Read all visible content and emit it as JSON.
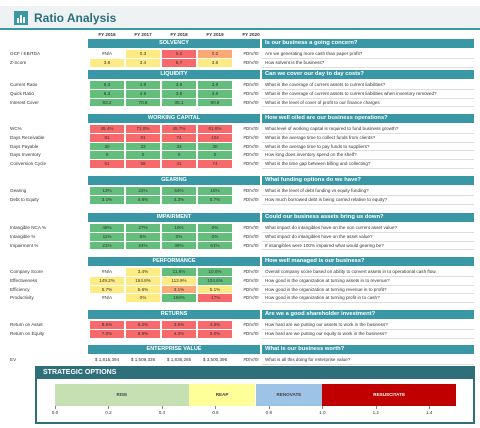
{
  "header": {
    "title": "Ratio Analysis"
  },
  "columns": [
    "FY 2016",
    "FY 2017",
    "FY 2018",
    "FY 2019",
    "FY 2020"
  ],
  "sections": [
    {
      "title": "SOLVENCY",
      "question": "Is our business a going concern?",
      "rows": [
        {
          "label": "GCF / EBITDA",
          "cells": [
            "#N/A",
            "0.3",
            "0.2",
            "0.2",
            "#DIV/0!"
          ],
          "fills": [
            "#ffffff",
            "#ffeb84",
            "#f8696b",
            "#fbaa77",
            "#ffffff"
          ],
          "question": "Are we generating more cash than paper profit?"
        },
        {
          "label": "Z-Score",
          "cells": [
            "3.9",
            "3.4",
            "6.7",
            "3.8",
            "#DIV/0!"
          ],
          "fills": [
            "#ffeb84",
            "#ffeb84",
            "#f8696b",
            "#ffeb84",
            "#ffffff"
          ],
          "question": "How solvent is the business?"
        }
      ]
    },
    {
      "title": "LIQUIDITY",
      "question": "Can we cover our day to day costs?",
      "rows": [
        {
          "label": "Current Ratio",
          "cells": [
            "6.3",
            "4.9",
            "3.9",
            "3.9",
            "#DIV/0!"
          ],
          "fills": [
            "#63be7b",
            "#63be7b",
            "#63be7b",
            "#63be7b",
            "#ffffff"
          ],
          "question": "What is the coverage of current assets to current liabilities?"
        },
        {
          "label": "Quick Ratio",
          "cells": [
            "6.3",
            "4.9",
            "3.8",
            "3.8",
            "#DIV/0!"
          ],
          "fills": [
            "#63be7b",
            "#63be7b",
            "#63be7b",
            "#63be7b",
            "#ffffff"
          ],
          "question": "What is the coverage of current assets to current liabilities when inventory removed?"
        },
        {
          "label": "Interest Cover",
          "cells": [
            "93.2",
            "70.6",
            "35.1",
            "90.9",
            "#DIV/0!"
          ],
          "fills": [
            "#63be7b",
            "#63be7b",
            "#63be7b",
            "#63be7b",
            "#ffffff"
          ],
          "question": "What is the level of cover of profit to our finance charges"
        }
      ]
    },
    {
      "title": "WORKING CAPITAL",
      "question": "How well oiled are our business operations?",
      "rows": [
        {
          "label": "WC%",
          "cells": [
            "45.4%",
            "71.0%",
            "45.7%",
            "61.6%",
            "#DIV/0!"
          ],
          "fills": [
            "#f8696b",
            "#f8696b",
            "#f8696b",
            "#f8696b",
            "#ffffff"
          ],
          "question": "What level of working capital is required to fund business growth?"
        },
        {
          "label": "Days Receivable",
          "cells": [
            "81",
            "91",
            "74",
            "104",
            "#DIV/0!"
          ],
          "fills": [
            "#f8696b",
            "#f8696b",
            "#f8696b",
            "#f8696b",
            "#ffffff"
          ],
          "question": "What is the average time to collect funds from clients?"
        },
        {
          "label": "Days Payable",
          "cells": [
            "30",
            "33",
            "33",
            "30",
            "#DIV/0!"
          ],
          "fills": [
            "#63be7b",
            "#63be7b",
            "#63be7b",
            "#63be7b",
            "#ffffff"
          ],
          "question": "What is the average time to pay funds to suppliers?"
        },
        {
          "label": "Days Inventory",
          "cells": [
            "0",
            "0",
            "0",
            "0",
            "#DIV/0!"
          ],
          "fills": [
            "#63be7b",
            "#63be7b",
            "#63be7b",
            "#63be7b",
            "#ffffff"
          ],
          "question": "How long does inventory spend on the shelf?"
        },
        {
          "label": "Conversion Cycle",
          "cells": [
            "51",
            "58",
            "41",
            "74",
            "#DIV/0!"
          ],
          "fills": [
            "#f8696b",
            "#f8696b",
            "#f8696b",
            "#f8696b",
            "#ffffff"
          ],
          "question": "What is the time gap between billing and collecting?"
        }
      ]
    },
    {
      "title": "GEARING",
      "question": "What funding options do we have?",
      "rows": [
        {
          "label": "Gearing",
          "cells": [
            "13%",
            "22%",
            "64%",
            "15%",
            "#DIV/0!"
          ],
          "fills": [
            "#63be7b",
            "#63be7b",
            "#63be7b",
            "#63be7b",
            "#ffffff"
          ],
          "question": "What is the level of debt funding vs equity funding?"
        },
        {
          "label": "Debt to Equity",
          "cells": [
            "3.1%",
            "4.8%",
            "4.3%",
            "0.7%",
            "#DIV/0!"
          ],
          "fills": [
            "#63be7b",
            "#63be7b",
            "#63be7b",
            "#63be7b",
            "#ffffff"
          ],
          "question": "How much borrowed debt is being carried relative to equity?"
        }
      ]
    },
    {
      "title": "IMPAIRMENT",
      "question": "Could our business assets bring us down?",
      "rows": [
        {
          "label": "Intangible NCA %",
          "cells": [
            "48%",
            "27%",
            "16%",
            "0%",
            "#DIV/0!"
          ],
          "fills": [
            "#63be7b",
            "#63be7b",
            "#63be7b",
            "#63be7b",
            "#ffffff"
          ],
          "question": "What impact do intangibles have on the non current asset value?"
        },
        {
          "label": "Intangible %",
          "cells": [
            "11%",
            "8%",
            "0%",
            "0%",
            "#DIV/0!"
          ],
          "fills": [
            "#63be7b",
            "#63be7b",
            "#63be7b",
            "#63be7b",
            "#ffffff"
          ],
          "question": "What impact do intangibles have on the asset value?"
        },
        {
          "label": "Impairment %",
          "cells": [
            "21%",
            "24%",
            "36%",
            "61%",
            "#DIV/0!"
          ],
          "fills": [
            "#63be7b",
            "#63be7b",
            "#63be7b",
            "#63be7b",
            "#ffffff"
          ],
          "question": "If intangibles were 100% impaired what would gearing be?"
        }
      ]
    },
    {
      "title": "PERFORMANCE",
      "question": "How well managed is our business?",
      "rows": [
        {
          "label": "Company Score",
          "cells": [
            "#N/A",
            "3.4%",
            "11.8%",
            "10.6%",
            "#DIV/0!"
          ],
          "fills": [
            "#ffffff",
            "#ffeb84",
            "#63be7b",
            "#63be7b",
            "#ffffff"
          ],
          "question": "Overall company score based on ability to convert assets in to operational cash flow."
        },
        {
          "label": "Effectiveness",
          "cells": [
            "149.2%",
            "164.8%",
            "113.9%",
            "104.6%",
            "#DIV/0!"
          ],
          "fills": [
            "#ffeb84",
            "#ffeb84",
            "#ffeb84",
            "#63be7b",
            "#ffffff"
          ],
          "question": "How good is the organization at turning assets in to revenue?"
        },
        {
          "label": "Efficiency",
          "cells": [
            "5.7%",
            "5.6%",
            "3.1%",
            "5.1%",
            "#DIV/0!"
          ],
          "fills": [
            "#ffeb84",
            "#ffeb84",
            "#fbaa77",
            "#ffeb84",
            "#ffffff"
          ],
          "question": "How good is the organization at turning revenue in to profit?"
        },
        {
          "label": "Productivity",
          "cells": [
            "#N/A",
            "0%",
            "156%",
            "-17%",
            "#DIV/0!"
          ],
          "fills": [
            "#ffffff",
            "#ffeb84",
            "#63be7b",
            "#f8696b",
            "#ffffff"
          ],
          "question": "How good is the organization at turning profit in to cash?"
        }
      ]
    },
    {
      "title": "RETURNS",
      "question": "Are we a good shareholder investment?",
      "rows": [
        {
          "label": "Return on Asset",
          "cells": [
            "8.5%",
            "9.2%",
            "3.5%",
            "4.9%",
            "#DIV/0!"
          ],
          "fills": [
            "#f8696b",
            "#f8696b",
            "#f8696b",
            "#f8696b",
            "#ffffff"
          ],
          "question": "How hard are we putting our assets to work in the business?"
        },
        {
          "label": "Return on Equity",
          "cells": [
            "7.0%",
            "8.9%",
            "4.3%",
            "5.0%",
            "#DIV/0!"
          ],
          "fills": [
            "#f8696b",
            "#f8696b",
            "#f8696b",
            "#f8696b",
            "#ffffff"
          ],
          "question": "How hard are we putting our equity to work in the business?"
        }
      ]
    },
    {
      "title": "ENTERPRISE VALUE",
      "question": "What is our business worth?",
      "rows": [
        {
          "label": "EV",
          "cells": [
            "$ 1,815,394",
            "$ 1,509,336",
            "$ 1,836,285",
            "$ 3,500,396",
            "#DIV/0!"
          ],
          "fills": [
            "#ffffff",
            "#ffffff",
            "#ffffff",
            "#ffffff",
            "#ffffff"
          ],
          "question": "What is all this doing for enterprise value?"
        }
      ]
    }
  ],
  "strategic_options": {
    "title": "STRATEGIC OPTIONS",
    "xlim": [
      0,
      1.5
    ],
    "xticks": [
      {
        "value": 0,
        "label": "0.0"
      },
      0.2,
      0.4,
      0.6,
      0.8,
      {
        "value": 1,
        "label": "1.0"
      },
      1.2,
      1.4
    ],
    "bands": [
      {
        "label": "RISE",
        "from": 0,
        "to": 0.5,
        "color": "#c6e0b4"
      },
      {
        "label": "REAP",
        "from": 0.5,
        "to": 0.75,
        "color": "#ffff99"
      },
      {
        "label": "RENOVATE",
        "from": 0.75,
        "to": 1,
        "color": "#9dc3e6"
      },
      {
        "label": "RESUSCITATE",
        "from": 1,
        "to": 1.5,
        "color": "#c00000"
      }
    ]
  }
}
